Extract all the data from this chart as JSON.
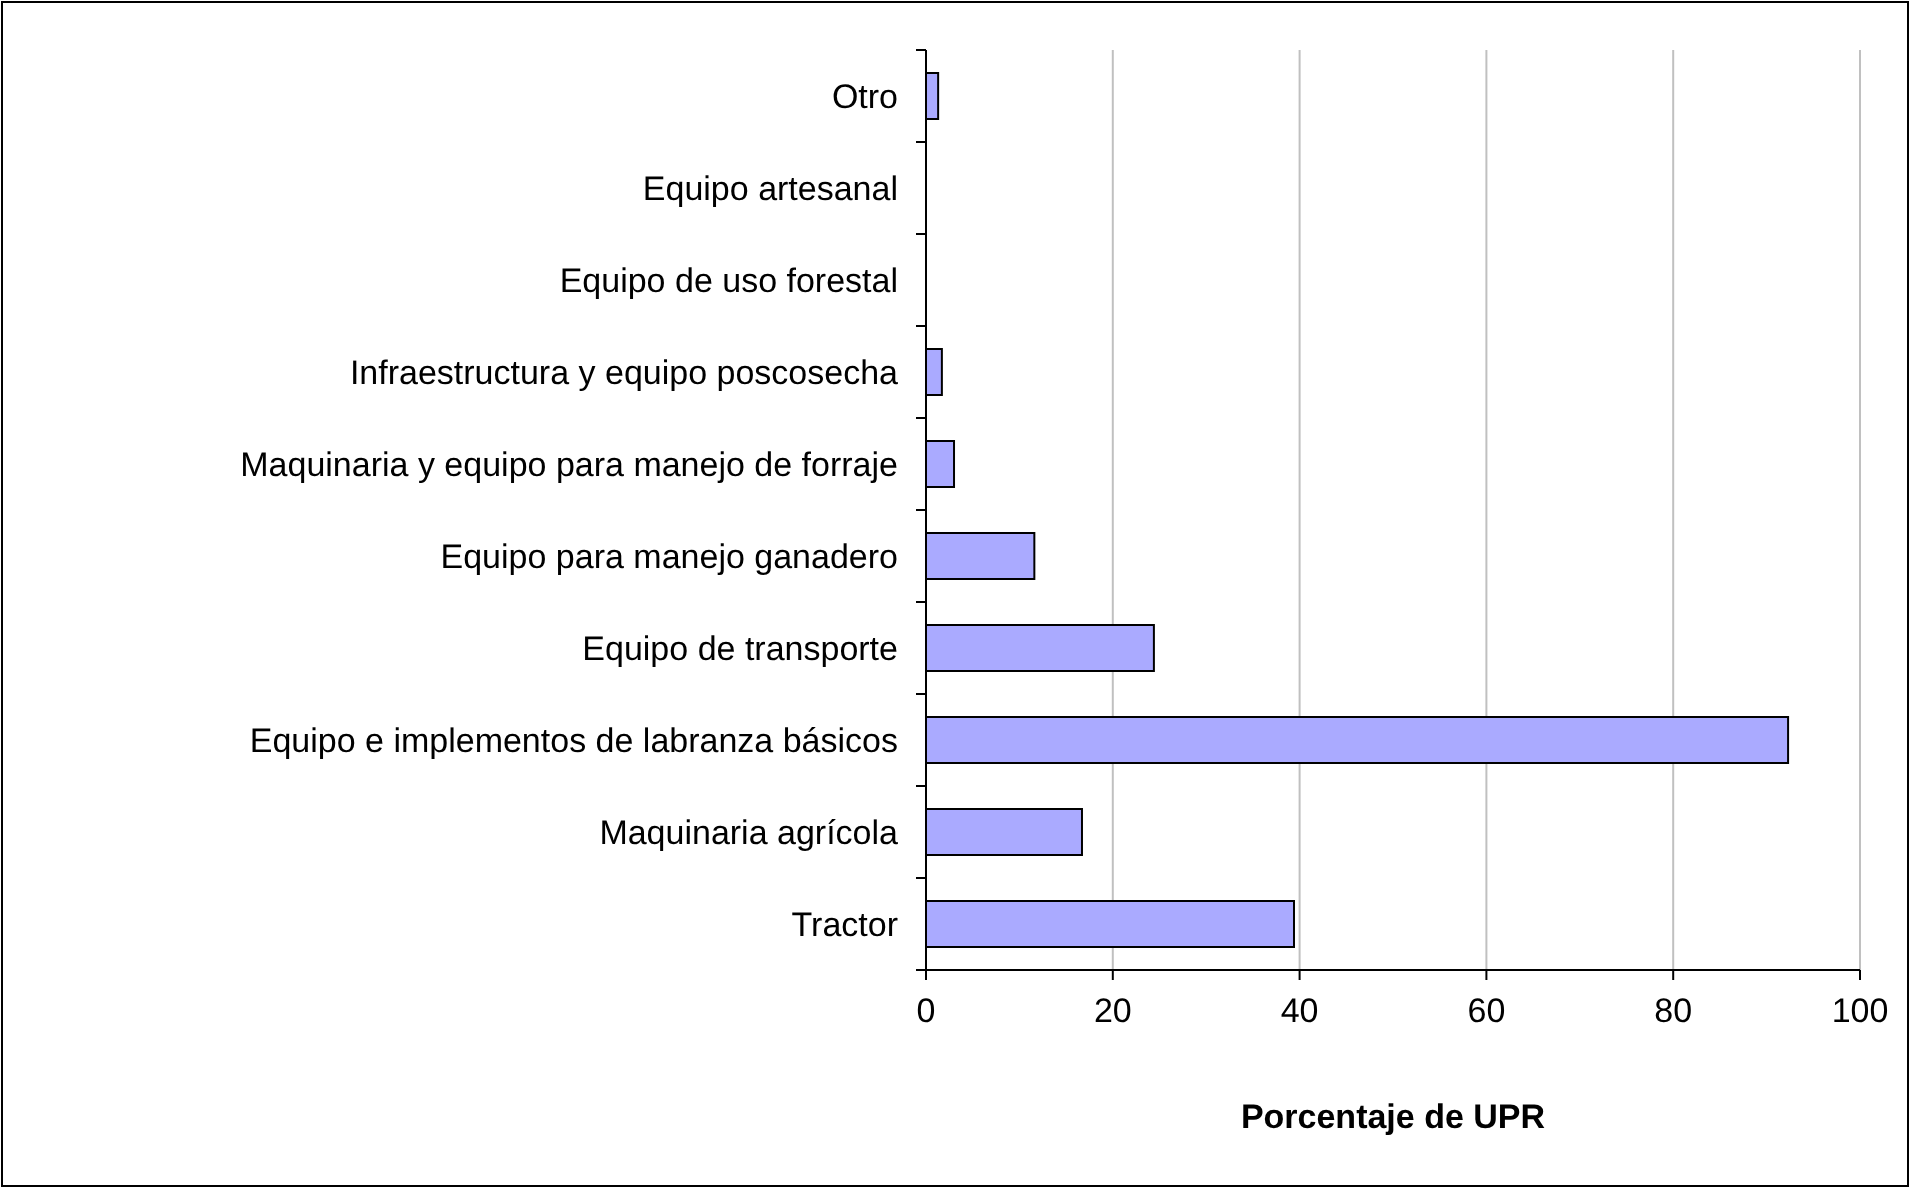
{
  "chart_data": {
    "type": "bar",
    "orientation": "horizontal",
    "xlabel": "Porcentaje de UPR",
    "categories": [
      "Otro",
      "Equipo artesanal",
      "Equipo de uso forestal",
      "Infraestructura y equipo poscosecha",
      "Maquinaria y equipo para manejo de forraje",
      "Equipo para manejo ganadero",
      "Equipo de transporte",
      "Equipo e implementos de labranza básicos",
      "Maquinaria agrícola",
      "Tractor"
    ],
    "values": [
      1.3,
      0,
      0,
      1.7,
      3.0,
      11.6,
      24.4,
      92.3,
      16.7,
      39.4
    ],
    "color": "#aaaaff",
    "xlim": [
      0,
      100
    ],
    "xticks": [
      0,
      20,
      40,
      60,
      80,
      100
    ],
    "grid": "x"
  }
}
